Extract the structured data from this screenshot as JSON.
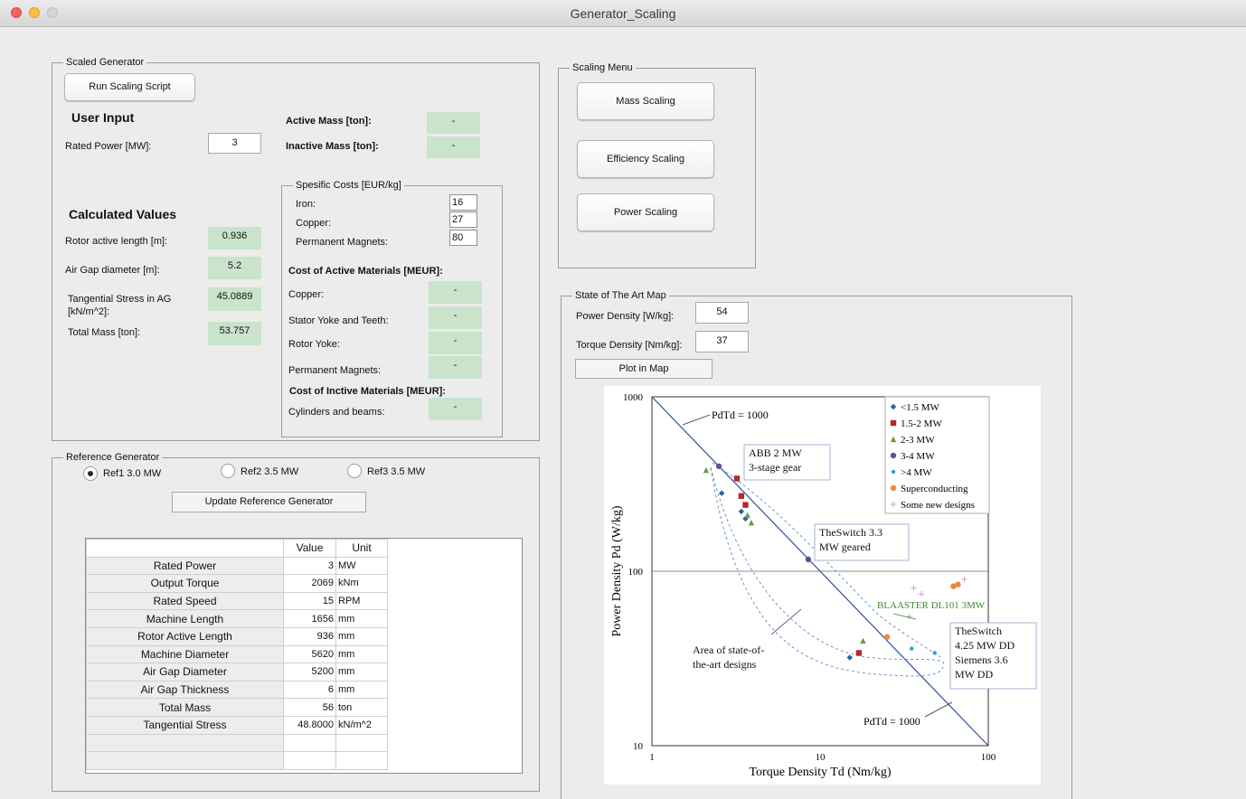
{
  "window": {
    "title": "Generator_Scaling"
  },
  "scaled": {
    "title": "Scaled Generator",
    "run_button": "Run Scaling Script",
    "user_input_heading": "User Input",
    "rated_power_label": "Rated Power [MW]:",
    "rated_power_value": "3",
    "active_mass_label": "Active Mass [ton]:",
    "active_mass_value": "-",
    "inactive_mass_label": "Inactive Mass [ton]:",
    "inactive_mass_value": "-",
    "calc_heading": "Calculated Values",
    "rotor_length_label": "Rotor active length [m]:",
    "rotor_length_value": "0.936",
    "air_gap_label": "Air Gap diameter [m]:",
    "air_gap_value": "5.2",
    "tangential_label": "Tangential Stress in AG [kN/m^2]:",
    "tangential_value": "45.0889",
    "total_mass_label": "Total Mass [ton]:",
    "total_mass_value": "53.757",
    "costs": {
      "title": "Spesific Costs [EUR/kg]",
      "iron_label": "Iron:",
      "iron_value": "16",
      "copper_label": "Copper:",
      "copper_value": "27",
      "pm_label": "Permanent Magnets:",
      "pm_value": "80",
      "active_heading": "Cost of Active Materials [MEUR]:",
      "a_copper_label": "Copper:",
      "a_copper_value": "-",
      "stator_label": "Stator Yoke and Teeth:",
      "stator_value": "-",
      "rotor_label": "Rotor Yoke:",
      "rotor_value": "-",
      "a_pm_label": "Permanent Magnets:",
      "a_pm_value": "-",
      "inactive_heading": "Cost of Inctive Materials [MEUR]:",
      "cyl_label": "Cylinders and beams:",
      "cyl_value": "-"
    }
  },
  "scaling_menu": {
    "title": "Scaling Menu",
    "mass_button": "Mass Scaling",
    "efficiency_button": "Efficiency Scaling",
    "power_button": "Power Scaling"
  },
  "reference": {
    "title": "Reference Generator",
    "radio1": "Ref1 3.0 MW",
    "radio2": "Ref2 3.5 MW",
    "radio3": "Ref3 3.5 MW",
    "selected": "Ref1 3.0 MW",
    "update_button": "Update Reference Generator",
    "col_value": "Value",
    "col_unit": "Unit",
    "rows": [
      {
        "name": "Rated Power",
        "value": "3",
        "unit": "MW"
      },
      {
        "name": "Output Torque",
        "value": "2069",
        "unit": "kNm"
      },
      {
        "name": "Rated Speed",
        "value": "15",
        "unit": "RPM"
      },
      {
        "name": "Machine Length",
        "value": "1656",
        "unit": "mm"
      },
      {
        "name": "Rotor Active Length",
        "value": "936",
        "unit": "mm"
      },
      {
        "name": "Machine Diameter",
        "value": "5620",
        "unit": "mm"
      },
      {
        "name": "Air Gap Diameter",
        "value": "5200",
        "unit": "mm"
      },
      {
        "name": "Air Gap Thickness",
        "value": "6",
        "unit": "mm"
      },
      {
        "name": "Total Mass",
        "value": "56",
        "unit": "ton"
      },
      {
        "name": "Tangential Stress",
        "value": "48.8000",
        "unit": "kN/m^2"
      },
      {
        "name": "",
        "value": "",
        "unit": ""
      },
      {
        "name": "",
        "value": "",
        "unit": ""
      }
    ]
  },
  "state_map": {
    "title": "State of The Art Map",
    "power_density_label": "Power Density [W/kg]:",
    "power_density_value": "54",
    "torque_density_label": "Torque Density [Nm/kg]:",
    "torque_density_value": "37",
    "plot_button": "Plot in Map"
  },
  "chart_data": {
    "type": "scatter",
    "xlabel": "Torque Density Td (Nm/kg)",
    "ylabel": "Power Density Pd (W/kg)",
    "xscale": "log",
    "yscale": "log",
    "xlim": [
      1,
      100
    ],
    "ylim": [
      10,
      1000
    ],
    "xticks": [
      "1",
      "10",
      "100"
    ],
    "yticks": [
      "1000",
      "100",
      "10"
    ],
    "legend_position": "top-right",
    "series": [
      {
        "name": "<1.5 MW",
        "color": "#2e5fa8",
        "marker": "diamond",
        "points": [
          [
            2.6,
            280
          ],
          [
            3.4,
            220
          ],
          [
            3.6,
            200
          ],
          [
            15,
            32
          ]
        ]
      },
      {
        "name": "1.5-2 MW",
        "color": "#b8262e",
        "marker": "square",
        "points": [
          [
            3.2,
            340
          ],
          [
            3.4,
            270
          ],
          [
            3.6,
            240
          ],
          [
            17,
            34
          ]
        ]
      },
      {
        "name": "2-3 MW",
        "color": "#6b9a3b",
        "marker": "triangle",
        "points": [
          [
            2.1,
            380
          ],
          [
            3.9,
            190
          ],
          [
            3.7,
            210
          ],
          [
            18,
            40
          ]
        ]
      },
      {
        "name": "3-4 MW",
        "color": "#6a4a98",
        "marker": "circle",
        "points": [
          [
            2.5,
            400
          ],
          [
            8.5,
            117
          ]
        ]
      },
      {
        "name": ">4 MW",
        "color": "#2ba4c2",
        "marker": "dot",
        "points": [
          [
            35,
            36
          ],
          [
            48,
            34
          ]
        ]
      },
      {
        "name": "Superconducting",
        "color": "#e98a3a",
        "marker": "circle",
        "points": [
          [
            62,
            82
          ],
          [
            66,
            84
          ],
          [
            25,
            42
          ]
        ]
      },
      {
        "name": "Some new designs",
        "color": "#c9a3d7",
        "marker": "plus",
        "points": [
          [
            36,
            80
          ],
          [
            72,
            90
          ],
          [
            40,
            74
          ],
          [
            34,
            55
          ]
        ]
      }
    ],
    "reference_lines": [
      {
        "label": "PdTd = 1000",
        "points": [
          [
            1,
            1000
          ],
          [
            100,
            10
          ]
        ]
      }
    ],
    "annotations": [
      "ABB 2 MW\n3-stage gear",
      "TheSwitch 3.3\nMW geared",
      "BLAASTER DL101 3MW",
      "TheSwitch\n4.25 MW DD\nSiemens 3.6\nMW DD",
      "Area of state-of-\nthe-art designs"
    ]
  }
}
